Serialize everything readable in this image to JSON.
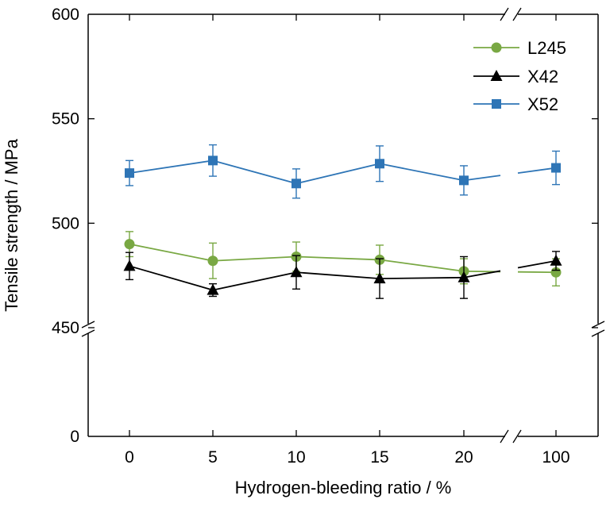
{
  "chart_data": {
    "type": "line",
    "title": "",
    "xlabel": "Hydrogen-bleeding ratio / %",
    "ylabel": "Tensile strength / MPa",
    "categories": [
      "0",
      "5",
      "10",
      "15",
      "20",
      "100"
    ],
    "x_axis_break_between": [
      "20",
      "100"
    ],
    "y_axis_break_between": [
      0,
      450
    ],
    "y_ticks": [
      "0",
      "450",
      "500",
      "550",
      "600"
    ],
    "ylim_upper": [
      450,
      600
    ],
    "legend_position": "top-right",
    "grid": false,
    "series": [
      {
        "name": "L245",
        "color": "#79a843",
        "marker": "circle",
        "values": [
          490,
          482,
          484,
          482.5,
          477,
          476.5
        ],
        "error": [
          6,
          8.5,
          7,
          7,
          6,
          6.5
        ]
      },
      {
        "name": "X42",
        "color": "#000000",
        "marker": "triangle",
        "values": [
          479.5,
          468,
          476.5,
          473.5,
          474,
          482
        ],
        "error": [
          6.5,
          3,
          8,
          9.5,
          10,
          4.5
        ]
      },
      {
        "name": "X52",
        "color": "#2e75b6",
        "marker": "square",
        "values": [
          524,
          530,
          519,
          528.5,
          520.5,
          526.5
        ],
        "error": [
          6,
          7.5,
          7,
          8.5,
          7,
          8
        ]
      }
    ]
  }
}
